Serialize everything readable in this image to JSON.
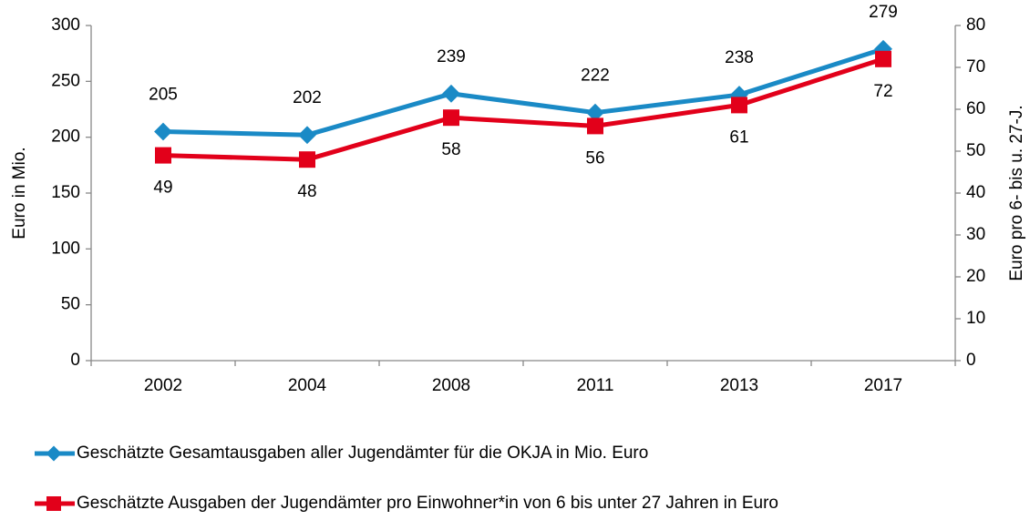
{
  "chart_data": {
    "type": "line",
    "categories": [
      "2002",
      "2004",
      "2008",
      "2011",
      "2013",
      "2017"
    ],
    "series": [
      {
        "name": "Geschätzte Gesamtausgaben aller Jugendämter für die OKJA in Mio. Euro",
        "color": "#1a8ac6",
        "values": [
          205,
          202,
          239,
          222,
          238,
          279
        ]
      },
      {
        "name": "Geschätzte Ausgaben der Jugendämter pro Einwohner*in von 6 bis unter 27 Jahren in Euro",
        "color": "#e2001a",
        "axis": "y2",
        "values": [
          49,
          48,
          58,
          56,
          61,
          72
        ]
      }
    ],
    "ylabel": "Euro in Mio.",
    "y2label": "Euro pro 6- bis u. 27-J.",
    "ylim": [
      0,
      300
    ],
    "yticks": [
      0,
      50,
      100,
      150,
      200,
      250,
      300
    ],
    "y2lim": [
      0,
      80
    ],
    "y2ticks": [
      0,
      10,
      20,
      30,
      40,
      50,
      60,
      70,
      80
    ],
    "legend": "bottom"
  }
}
